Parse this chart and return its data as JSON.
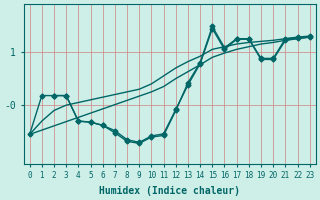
{
  "xlabel": "Humidex (Indice chaleur)",
  "background_color": "#ceeee8",
  "plot_bg_color": "#ceeee8",
  "grid_color_v": "#d08080",
  "grid_color_h": "#d08080",
  "line_color": "#006666",
  "xlim": [
    -0.5,
    23.5
  ],
  "ylim": [
    -1.1,
    1.9
  ],
  "xticks": [
    0,
    1,
    2,
    3,
    4,
    5,
    6,
    7,
    8,
    9,
    10,
    11,
    12,
    13,
    14,
    15,
    16,
    17,
    18,
    19,
    20,
    21,
    22,
    23
  ],
  "ytick_vals": [
    1.0,
    0.0
  ],
  "ytick_labels": [
    "1",
    "-0"
  ],
  "line1_x": [
    0,
    1,
    2,
    3,
    4,
    5,
    6,
    7,
    8,
    9,
    10,
    11,
    12,
    13,
    14,
    15,
    16,
    17,
    18,
    19,
    20,
    21,
    22,
    23
  ],
  "line1_y": [
    -0.55,
    -0.47,
    -0.39,
    -0.31,
    -0.23,
    -0.15,
    -0.07,
    0.01,
    0.09,
    0.17,
    0.25,
    0.35,
    0.5,
    0.63,
    0.76,
    0.9,
    0.98,
    1.05,
    1.1,
    1.15,
    1.18,
    1.22,
    1.25,
    1.28
  ],
  "line2_x": [
    0,
    1,
    2,
    3,
    4,
    5,
    6,
    7,
    8,
    9,
    10,
    11,
    12,
    13,
    14,
    15,
    16,
    17,
    18,
    19,
    20,
    21,
    22,
    23
  ],
  "line2_y": [
    -0.55,
    -0.3,
    -0.1,
    0.0,
    0.05,
    0.1,
    0.15,
    0.2,
    0.25,
    0.3,
    0.4,
    0.55,
    0.7,
    0.82,
    0.92,
    1.05,
    1.1,
    1.15,
    1.18,
    1.2,
    1.22,
    1.25,
    1.27,
    1.29
  ],
  "line3_x": [
    0,
    1,
    2,
    3,
    4,
    5,
    6,
    7,
    8,
    9,
    10,
    11,
    12,
    13,
    14,
    15,
    16,
    17,
    18,
    19,
    20,
    21,
    22,
    23
  ],
  "line3_y": [
    -0.55,
    0.18,
    0.18,
    0.18,
    -0.3,
    -0.32,
    -0.38,
    -0.52,
    -0.68,
    -0.72,
    -0.6,
    -0.57,
    -0.1,
    0.42,
    0.8,
    1.48,
    1.08,
    1.25,
    1.25,
    0.88,
    0.88,
    1.25,
    1.28,
    1.3
  ],
  "line4_x": [
    2,
    3,
    4,
    5,
    6,
    7,
    8,
    9,
    10,
    11,
    12,
    13,
    14,
    15,
    16,
    17,
    18,
    19,
    20,
    21,
    22,
    23
  ],
  "line4_y": [
    0.18,
    0.18,
    -0.3,
    -0.32,
    -0.38,
    -0.48,
    -0.65,
    -0.7,
    -0.58,
    -0.54,
    -0.08,
    0.38,
    0.78,
    1.44,
    1.05,
    1.24,
    1.24,
    0.86,
    0.86,
    1.22,
    1.26,
    1.28
  ]
}
